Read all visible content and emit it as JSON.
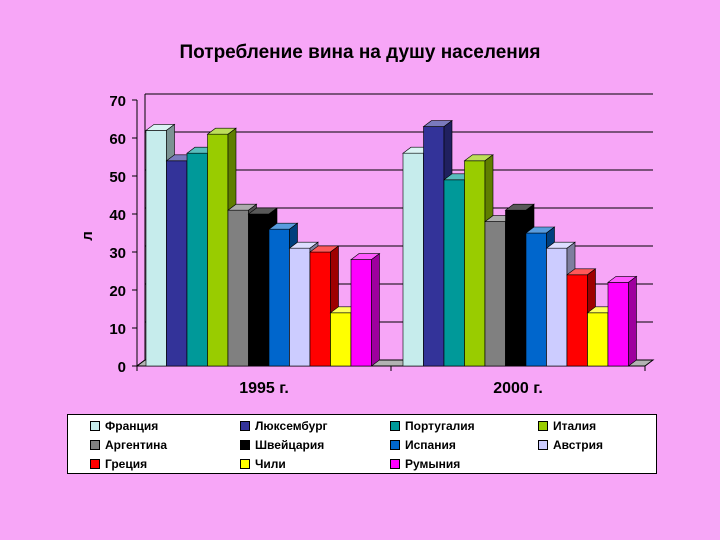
{
  "chart_data": {
    "type": "bar",
    "title": "Потребление вина на душу населения",
    "ylabel": "л",
    "xlabel": "",
    "ylim": [
      0,
      70
    ],
    "yticks": [
      0,
      10,
      20,
      30,
      40,
      50,
      60,
      70
    ],
    "grid": true,
    "legend_position": "bottom",
    "categories": [
      "1995 г.",
      "2000 г."
    ],
    "series": [
      {
        "name": "Франция",
        "color": "#c6ecec",
        "values": [
          62,
          56
        ]
      },
      {
        "name": "Люксембург",
        "color": "#333399",
        "values": [
          54,
          63
        ]
      },
      {
        "name": "Португалия",
        "color": "#009999",
        "values": [
          56,
          49
        ]
      },
      {
        "name": "Италия",
        "color": "#99cc00",
        "values": [
          61,
          54
        ]
      },
      {
        "name": "Аргентина",
        "color": "#808080",
        "values": [
          41,
          38
        ]
      },
      {
        "name": "Швейцария",
        "color": "#000000",
        "values": [
          40,
          41
        ]
      },
      {
        "name": "Испания",
        "color": "#0066cc",
        "values": [
          36,
          35
        ]
      },
      {
        "name": "Австрия",
        "color": "#ccccff",
        "values": [
          31,
          31
        ]
      },
      {
        "name": "Греция",
        "color": "#ff0000",
        "values": [
          30,
          24
        ]
      },
      {
        "name": "Чили",
        "color": "#ffff00",
        "values": [
          14,
          14
        ]
      },
      {
        "name": "Румыния",
        "color": "#ff00ff",
        "values": [
          28,
          22
        ]
      }
    ]
  }
}
